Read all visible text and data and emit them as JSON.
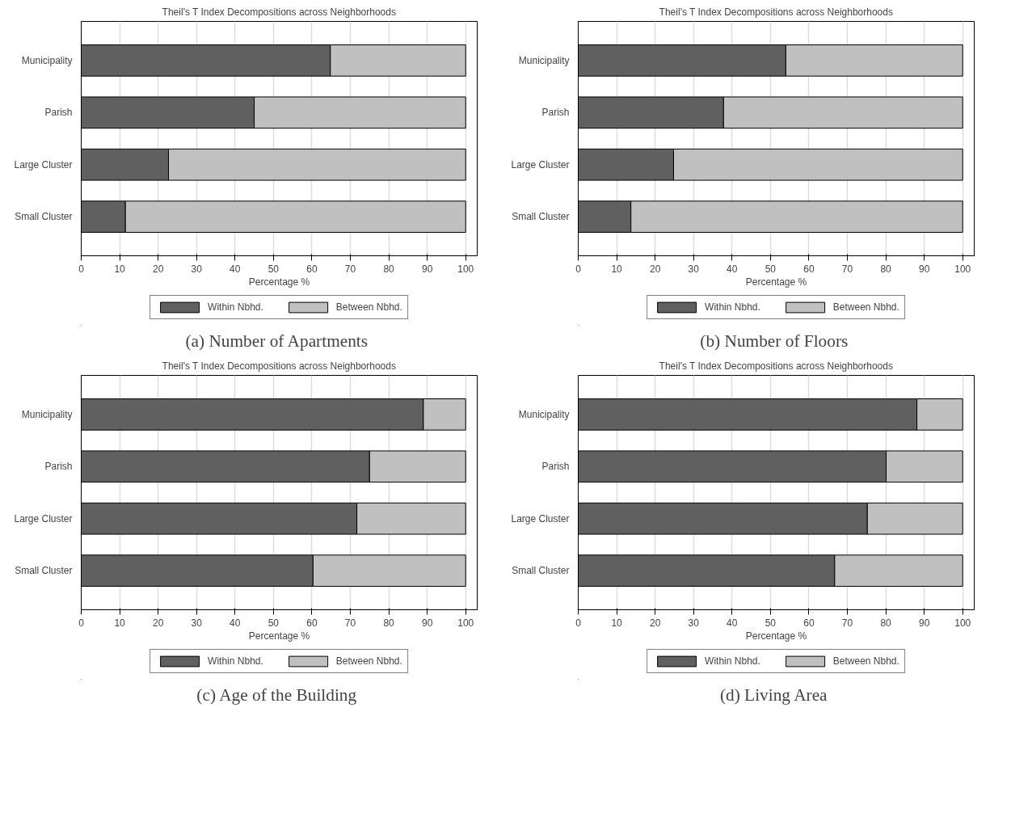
{
  "chart_data": [
    {
      "type": "bar",
      "orientation": "horizontal",
      "stacked": true,
      "title": "Theil's T Index Decompositions across Neighborhoods",
      "subtitle": "(a)  Number of Apartments",
      "xlabel": "Percentage %",
      "categories": [
        "Municipality",
        "Parish",
        "Large Cluster",
        "Small Cluster"
      ],
      "xlim": [
        0,
        103
      ],
      "xticks": [
        0,
        10,
        20,
        30,
        40,
        50,
        60,
        70,
        80,
        90,
        100
      ],
      "grid": "x",
      "legend": "bottom",
      "series": [
        {
          "name": "Within Nbhd.",
          "color": "#606060",
          "values": [
            64.8,
            45.0,
            22.7,
            11.5
          ]
        },
        {
          "name": "Between Nbhd.",
          "color": "#c0c0c0",
          "values": [
            35.2,
            55.0,
            77.3,
            88.5
          ]
        }
      ]
    },
    {
      "type": "bar",
      "orientation": "horizontal",
      "stacked": true,
      "title": "Theil's T Index Decompositions across Neighborhoods",
      "subtitle": "(b)  Number of Floors",
      "xlabel": "Percentage %",
      "categories": [
        "Municipality",
        "Parish",
        "Large Cluster",
        "Small Cluster"
      ],
      "xlim": [
        0,
        103
      ],
      "xticks": [
        0,
        10,
        20,
        30,
        40,
        50,
        60,
        70,
        80,
        90,
        100
      ],
      "grid": "x",
      "legend": "bottom",
      "series": [
        {
          "name": "Within Nbhd.",
          "color": "#606060",
          "values": [
            54.0,
            37.8,
            24.8,
            13.7
          ]
        },
        {
          "name": "Between Nbhd.",
          "color": "#c0c0c0",
          "values": [
            46.0,
            62.2,
            75.2,
            86.3
          ]
        }
      ]
    },
    {
      "type": "bar",
      "orientation": "horizontal",
      "stacked": true,
      "title": "Theil's T Index Decompositions across Neighborhoods",
      "subtitle": "(c)  Age of the Building",
      "xlabel": "Percentage %",
      "categories": [
        "Municipality",
        "Parish",
        "Large Cluster",
        "Small Cluster"
      ],
      "xlim": [
        0,
        103
      ],
      "xticks": [
        0,
        10,
        20,
        30,
        40,
        50,
        60,
        70,
        80,
        90,
        100
      ],
      "grid": "x",
      "legend": "bottom",
      "series": [
        {
          "name": "Within Nbhd.",
          "color": "#606060",
          "values": [
            89.0,
            75.0,
            71.7,
            60.3
          ]
        },
        {
          "name": "Between Nbhd.",
          "color": "#c0c0c0",
          "values": [
            11.0,
            25.0,
            28.3,
            39.7
          ]
        }
      ]
    },
    {
      "type": "bar",
      "orientation": "horizontal",
      "stacked": true,
      "title": "Theil's T Index Decompositions across Neighborhoods",
      "subtitle": "(d)  Living Area",
      "xlabel": "Percentage %",
      "categories": [
        "Municipality",
        "Parish",
        "Large Cluster",
        "Small Cluster"
      ],
      "xlim": [
        0,
        103
      ],
      "xticks": [
        0,
        10,
        20,
        30,
        40,
        50,
        60,
        70,
        80,
        90,
        100
      ],
      "grid": "x",
      "legend": "bottom",
      "series": [
        {
          "name": "Within Nbhd.",
          "color": "#606060",
          "values": [
            88.1,
            80.1,
            75.2,
            66.7
          ]
        },
        {
          "name": "Between Nbhd.",
          "color": "#c0c0c0",
          "values": [
            11.9,
            19.9,
            24.8,
            33.3
          ]
        }
      ]
    }
  ]
}
